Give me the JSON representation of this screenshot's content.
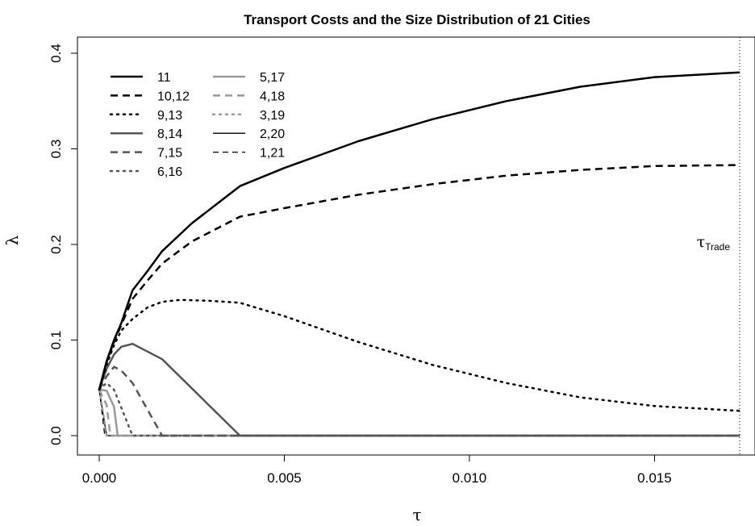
{
  "chart_data": {
    "type": "line",
    "title": "Transport Costs and the Size Distribution of 21 Cities",
    "xlabel": "τ",
    "ylabel": "λ",
    "xlim": [
      0,
      0.0173
    ],
    "ylim": [
      0,
      0.4
    ],
    "x_ticks": [
      0.0,
      0.005,
      0.01,
      0.015
    ],
    "x_tick_labels": [
      "0.000",
      "0.005",
      "0.010",
      "0.015"
    ],
    "y_ticks": [
      0.0,
      0.1,
      0.2,
      0.3,
      0.4
    ],
    "y_tick_labels": [
      "0.0",
      "0.1",
      "0.2",
      "0.3",
      "0.4"
    ],
    "grid": false,
    "legend_position": "top-left",
    "annotation": {
      "main": "τ",
      "sub": "Trade",
      "x": 0.0173
    },
    "series": [
      {
        "name": "11",
        "color": "#000000",
        "dash": "solid",
        "width": "thick",
        "points": [
          [
            0,
            0.048
          ],
          [
            0.0002,
            0.078
          ],
          [
            0.0004,
            0.1
          ],
          [
            0.0006,
            0.118
          ],
          [
            0.0009,
            0.152
          ],
          [
            0.0013,
            0.172
          ],
          [
            0.0017,
            0.193
          ],
          [
            0.0025,
            0.222
          ],
          [
            0.0038,
            0.261
          ],
          [
            0.005,
            0.28
          ],
          [
            0.007,
            0.308
          ],
          [
            0.009,
            0.331
          ],
          [
            0.011,
            0.35
          ],
          [
            0.013,
            0.365
          ],
          [
            0.015,
            0.375
          ],
          [
            0.0173,
            0.38
          ]
        ]
      },
      {
        "name": "10,12",
        "color": "#000000",
        "dash": "dashed",
        "width": "thick",
        "points": [
          [
            0,
            0.048
          ],
          [
            0.0002,
            0.077
          ],
          [
            0.0004,
            0.098
          ],
          [
            0.0006,
            0.116
          ],
          [
            0.0009,
            0.143
          ],
          [
            0.0013,
            0.162
          ],
          [
            0.0017,
            0.18
          ],
          [
            0.0025,
            0.203
          ],
          [
            0.0038,
            0.229
          ],
          [
            0.005,
            0.238
          ],
          [
            0.007,
            0.252
          ],
          [
            0.009,
            0.263
          ],
          [
            0.011,
            0.272
          ],
          [
            0.013,
            0.278
          ],
          [
            0.015,
            0.282
          ],
          [
            0.0173,
            0.283
          ]
        ]
      },
      {
        "name": "9,13",
        "color": "#000000",
        "dash": "dotted",
        "width": "thick",
        "points": [
          [
            0,
            0.048
          ],
          [
            0.0002,
            0.074
          ],
          [
            0.0004,
            0.095
          ],
          [
            0.0006,
            0.11
          ],
          [
            0.0009,
            0.122
          ],
          [
            0.0013,
            0.134
          ],
          [
            0.0017,
            0.14
          ],
          [
            0.0022,
            0.142
          ],
          [
            0.003,
            0.141
          ],
          [
            0.0038,
            0.139
          ],
          [
            0.005,
            0.125
          ],
          [
            0.007,
            0.098
          ],
          [
            0.009,
            0.074
          ],
          [
            0.011,
            0.055
          ],
          [
            0.013,
            0.04
          ],
          [
            0.015,
            0.031
          ],
          [
            0.0173,
            0.026
          ]
        ]
      },
      {
        "name": "8,14",
        "color": "#555555",
        "dash": "solid",
        "width": "thick",
        "points": [
          [
            0,
            0.048
          ],
          [
            0.0002,
            0.07
          ],
          [
            0.0004,
            0.085
          ],
          [
            0.0006,
            0.093
          ],
          [
            0.0009,
            0.096
          ],
          [
            0.0013,
            0.088
          ],
          [
            0.0017,
            0.08
          ],
          [
            0.0038,
            0.0
          ],
          [
            0.0173,
            0.0
          ]
        ]
      },
      {
        "name": "7,15",
        "color": "#555555",
        "dash": "dashed",
        "width": "thick",
        "points": [
          [
            0,
            0.048
          ],
          [
            0.0002,
            0.062
          ],
          [
            0.0004,
            0.072
          ],
          [
            0.0006,
            0.068
          ],
          [
            0.0009,
            0.055
          ],
          [
            0.0017,
            0.0
          ],
          [
            0.0173,
            0.0
          ]
        ]
      },
      {
        "name": "6,16",
        "color": "#555555",
        "dash": "dotted",
        "width": "thick",
        "points": [
          [
            0,
            0.048
          ],
          [
            0.0002,
            0.055
          ],
          [
            0.0004,
            0.048
          ],
          [
            0.0009,
            0.0
          ],
          [
            0.0173,
            0.0
          ]
        ]
      },
      {
        "name": "5,17",
        "color": "#999999",
        "dash": "solid",
        "width": "thick",
        "points": [
          [
            0,
            0.048
          ],
          [
            0.0002,
            0.047
          ],
          [
            0.0004,
            0.03
          ],
          [
            0.0005,
            0.0
          ],
          [
            0.0173,
            0.0
          ]
        ]
      },
      {
        "name": "4,18",
        "color": "#999999",
        "dash": "dashed",
        "width": "thick",
        "points": [
          [
            0,
            0.048
          ],
          [
            0.0002,
            0.032
          ],
          [
            0.0003,
            0.0
          ],
          [
            0.0173,
            0.0
          ]
        ]
      },
      {
        "name": "3,19",
        "color": "#999999",
        "dash": "dotted",
        "width": "thick",
        "points": [
          [
            0,
            0.048
          ],
          [
            0.0001,
            0.025
          ],
          [
            0.0002,
            0.0
          ],
          [
            0.0173,
            0.0
          ]
        ]
      },
      {
        "name": "2,20",
        "color": "#000000",
        "dash": "solid",
        "width": "thin",
        "points": [
          [
            0,
            0.048
          ],
          [
            0.0002,
            0.0
          ],
          [
            0.0173,
            0.0
          ]
        ]
      },
      {
        "name": "1,21",
        "color": "#000000",
        "dash": "dashed",
        "width": "thin",
        "points": [
          [
            0,
            0.048
          ],
          [
            0.00015,
            0.0
          ],
          [
            0.0173,
            0.0
          ]
        ]
      }
    ]
  }
}
